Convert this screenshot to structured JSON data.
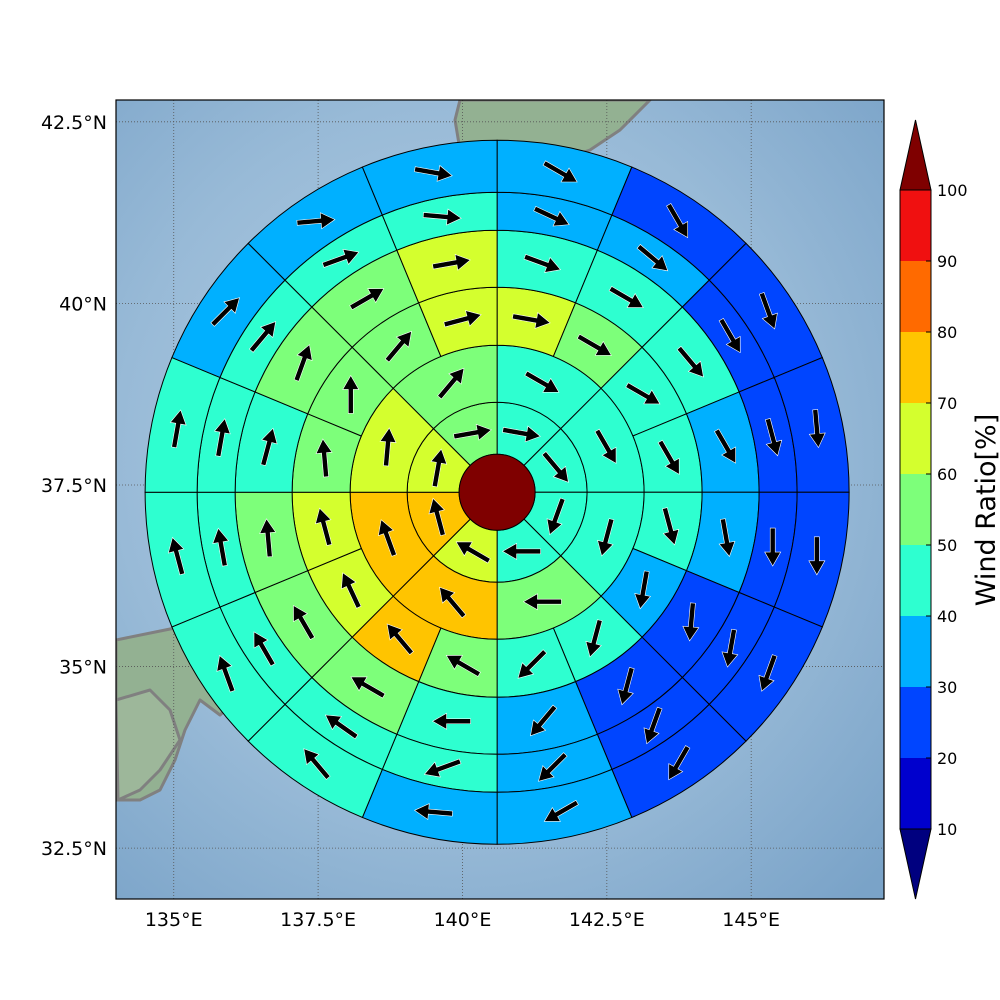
{
  "map": {
    "x_ticks": [
      {
        "lon": 135.0,
        "label": "135°E"
      },
      {
        "lon": 137.5,
        "label": "137.5°E"
      },
      {
        "lon": 140.0,
        "label": "140°E"
      },
      {
        "lon": 142.5,
        "label": "142.5°E"
      },
      {
        "lon": 145.0,
        "label": "145°E"
      }
    ],
    "y_ticks": [
      {
        "lat": 42.5,
        "label": "42.5°N"
      },
      {
        "lat": 40.0,
        "label": "40°N"
      },
      {
        "lat": 37.5,
        "label": "37.5°N"
      },
      {
        "lat": 35.0,
        "label": "35°N"
      },
      {
        "lat": 32.5,
        "label": "32.5°N"
      }
    ],
    "lon_range": [
      134.0,
      147.3
    ],
    "lat_range": [
      31.8,
      42.8
    ],
    "ocean_color": "#9ec0dc",
    "land_color": "#8fae8e",
    "coast_color": "#808080",
    "gridline_style": "dotted"
  },
  "colorbar": {
    "label": "Wind Ratio[%]",
    "ticks": [
      "10",
      "20",
      "30",
      "40",
      "50",
      "60",
      "70",
      "80",
      "90",
      "100"
    ],
    "bounds": [
      10,
      20,
      30,
      40,
      50,
      60,
      70,
      80,
      90,
      100
    ],
    "colors": [
      "#0000cd",
      "#0045ff",
      "#00b0ff",
      "#2effd0",
      "#7dff7a",
      "#d4ff2e",
      "#ffc400",
      "#ff6a00",
      "#f01010"
    ],
    "under_color": "#00007f",
    "over_color": "#7f0000",
    "extend": "both"
  },
  "chart_data": {
    "type": "polar_grid_wind_map",
    "center": {
      "lon": 140.6,
      "lat": 37.4
    },
    "center_value": 100,
    "center_color": "#7f0000",
    "sectors_per_ring": [
      8,
      8,
      16,
      16,
      16,
      16
    ],
    "rings": [
      [
        {
          "value": 45,
          "dir_deg": 100
        },
        {
          "value": 45,
          "dir_deg": 140
        },
        {
          "value": 45,
          "dir_deg": 200
        },
        {
          "value": 45,
          "dir_deg": 270
        },
        {
          "value": 65,
          "dir_deg": 300
        },
        {
          "value": 75,
          "dir_deg": 345
        },
        {
          "value": 65,
          "dir_deg": 10
        },
        {
          "value": 55,
          "dir_deg": 80
        }
      ],
      [
        {
          "value": 45,
          "dir_deg": 120
        },
        {
          "value": 45,
          "dir_deg": 150
        },
        {
          "value": 45,
          "dir_deg": 195
        },
        {
          "value": 55,
          "dir_deg": 270
        },
        {
          "value": 75,
          "dir_deg": 320
        },
        {
          "value": 75,
          "dir_deg": 340
        },
        {
          "value": 65,
          "dir_deg": 5
        },
        {
          "value": 55,
          "dir_deg": 40
        }
      ],
      [
        {
          "value": 65,
          "dir_deg": 100
        },
        {
          "value": 55,
          "dir_deg": 120
        },
        {
          "value": 45,
          "dir_deg": 120
        },
        {
          "value": 45,
          "dir_deg": 150
        },
        {
          "value": 45,
          "dir_deg": 165
        },
        {
          "value": 35,
          "dir_deg": 190
        },
        {
          "value": 45,
          "dir_deg": 195
        },
        {
          "value": 45,
          "dir_deg": 225
        },
        {
          "value": 55,
          "dir_deg": 300
        },
        {
          "value": 75,
          "dir_deg": 320
        },
        {
          "value": 65,
          "dir_deg": 335
        },
        {
          "value": 65,
          "dir_deg": 345
        },
        {
          "value": 55,
          "dir_deg": 355
        },
        {
          "value": 55,
          "dir_deg": 0
        },
        {
          "value": 55,
          "dir_deg": 40
        },
        {
          "value": 65,
          "dir_deg": 75
        }
      ],
      [
        {
          "value": 45,
          "dir_deg": 110
        },
        {
          "value": 45,
          "dir_deg": 120
        },
        {
          "value": 45,
          "dir_deg": 140
        },
        {
          "value": 35,
          "dir_deg": 150
        },
        {
          "value": 35,
          "dir_deg": 170
        },
        {
          "value": 25,
          "dir_deg": 185
        },
        {
          "value": 25,
          "dir_deg": 195
        },
        {
          "value": 35,
          "dir_deg": 220
        },
        {
          "value": 45,
          "dir_deg": 270
        },
        {
          "value": 55,
          "dir_deg": 300
        },
        {
          "value": 55,
          "dir_deg": 330
        },
        {
          "value": 55,
          "dir_deg": 355
        },
        {
          "value": 45,
          "dir_deg": 15
        },
        {
          "value": 55,
          "dir_deg": 20
        },
        {
          "value": 55,
          "dir_deg": 60
        },
        {
          "value": 65,
          "dir_deg": 80
        }
      ],
      [
        {
          "value": 35,
          "dir_deg": 115
        },
        {
          "value": 35,
          "dir_deg": 130
        },
        {
          "value": 25,
          "dir_deg": 150
        },
        {
          "value": 25,
          "dir_deg": 165
        },
        {
          "value": 25,
          "dir_deg": 180
        },
        {
          "value": 25,
          "dir_deg": 190
        },
        {
          "value": 25,
          "dir_deg": 200
        },
        {
          "value": 35,
          "dir_deg": 225
        },
        {
          "value": 45,
          "dir_deg": 250
        },
        {
          "value": 45,
          "dir_deg": 305
        },
        {
          "value": 45,
          "dir_deg": 330
        },
        {
          "value": 45,
          "dir_deg": 350
        },
        {
          "value": 45,
          "dir_deg": 10
        },
        {
          "value": 45,
          "dir_deg": 40
        },
        {
          "value": 45,
          "dir_deg": 70
        },
        {
          "value": 45,
          "dir_deg": 95
        }
      ],
      [
        {
          "value": 35,
          "dir_deg": 120
        },
        {
          "value": 25,
          "dir_deg": 150
        },
        {
          "value": 25,
          "dir_deg": 160
        },
        {
          "value": 25,
          "dir_deg": 175
        },
        {
          "value": 25,
          "dir_deg": 180
        },
        {
          "value": 25,
          "dir_deg": 200
        },
        {
          "value": 25,
          "dir_deg": 210
        },
        {
          "value": 35,
          "dir_deg": 240
        },
        {
          "value": 35,
          "dir_deg": 275
        },
        {
          "value": 45,
          "dir_deg": 320
        },
        {
          "value": 45,
          "dir_deg": 340
        },
        {
          "value": 45,
          "dir_deg": 345
        },
        {
          "value": 45,
          "dir_deg": 10
        },
        {
          "value": 35,
          "dir_deg": 45
        },
        {
          "value": 35,
          "dir_deg": 85
        },
        {
          "value": 35,
          "dir_deg": 100
        }
      ]
    ]
  }
}
